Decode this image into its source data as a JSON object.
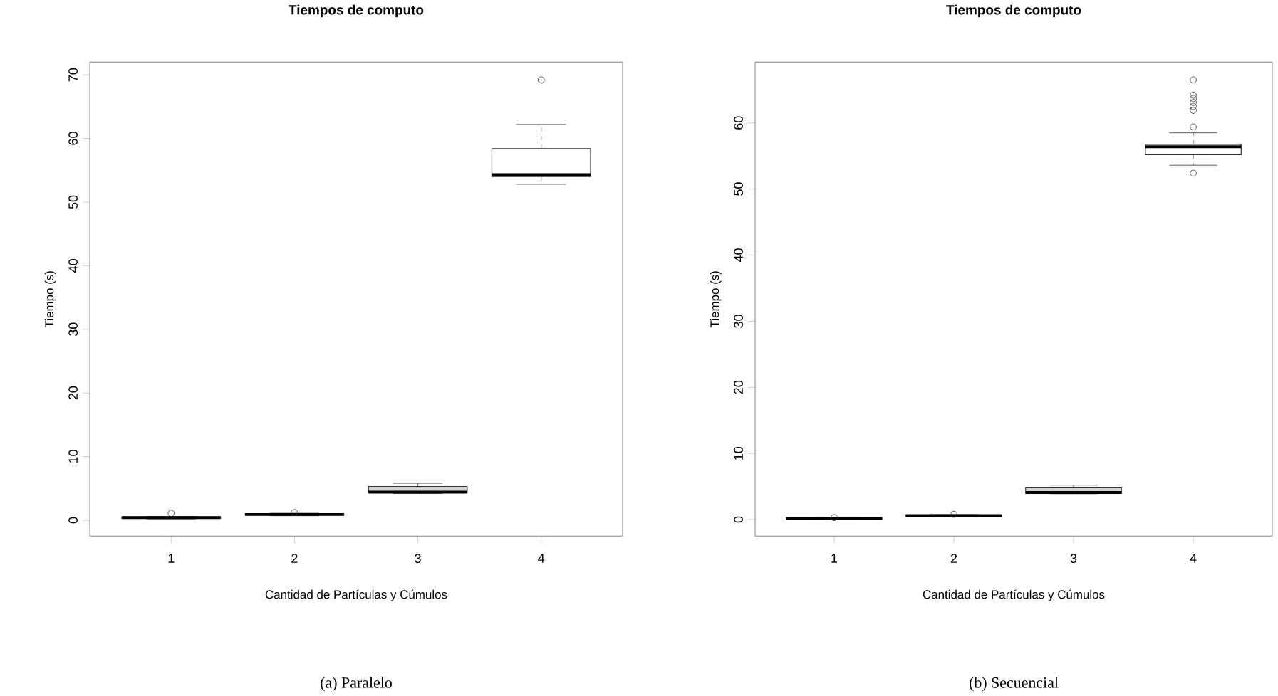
{
  "chart_data": [
    {
      "type": "box",
      "title": "Tiempos de computo",
      "xlabel": "Cantidad de Partículas y Cúmulos",
      "ylabel": "Tiempo (s)",
      "categories": [
        "1",
        "2",
        "3",
        "4"
      ],
      "boxes": [
        {
          "low": 0.2,
          "q1": 0.3,
          "median": 0.4,
          "q3": 0.5,
          "high": 0.6,
          "outliers": [
            1.1
          ]
        },
        {
          "low": 0.7,
          "q1": 0.8,
          "median": 0.9,
          "q3": 1.0,
          "high": 1.1,
          "outliers": [
            1.2
          ]
        },
        {
          "low": 4.2,
          "q1": 4.3,
          "median": 4.4,
          "q3": 5.3,
          "high": 5.8
        },
        {
          "low": 52.8,
          "q1": 54.0,
          "median": 54.3,
          "q3": 58.4,
          "high": 62.2,
          "outliers": [
            69.2
          ]
        }
      ],
      "colors": [
        "#ffffff",
        "#ffffff",
        "#d3d3d3",
        "#ffffff"
      ],
      "ylim": [
        -2.5,
        72
      ],
      "yticks": [
        0,
        10,
        20,
        30,
        40,
        50,
        60,
        70
      ],
      "marker": "circle",
      "annotations": [
        "(a) Paralelo"
      ]
    },
    {
      "type": "box",
      "title": "Tiempos de computo",
      "xlabel": "Cantidad de Partículas y Cúmulos",
      "ylabel": "Tiempo (s)",
      "categories": [
        "1",
        "2",
        "3",
        "4"
      ],
      "boxes": [
        {
          "low": 0.05,
          "q1": 0.1,
          "median": 0.2,
          "q3": 0.3,
          "high": 0.35,
          "outliers": [
            0.3
          ]
        },
        {
          "low": 0.4,
          "q1": 0.5,
          "median": 0.6,
          "q3": 0.7,
          "high": 0.75,
          "outliers": [
            0.8
          ]
        },
        {
          "low": 3.9,
          "q1": 3.95,
          "median": 4.1,
          "q3": 4.8,
          "high": 5.2
        },
        {
          "low": 53.6,
          "q1": 55.2,
          "median": 56.4,
          "q3": 56.75,
          "high": 58.5,
          "outliers": [
            66.5,
            64.2,
            63.7,
            63.1,
            62.5,
            61.9,
            59.4,
            52.4
          ]
        }
      ],
      "colors": [
        "#ffffff",
        "#ffffff",
        "#d3d3d3",
        "#ffffff"
      ],
      "ylim": [
        -2.5,
        69.2
      ],
      "yticks": [
        0,
        10,
        20,
        30,
        40,
        50,
        60
      ],
      "marker": "circle",
      "annotations": [
        "(b) Secuencial"
      ]
    }
  ]
}
